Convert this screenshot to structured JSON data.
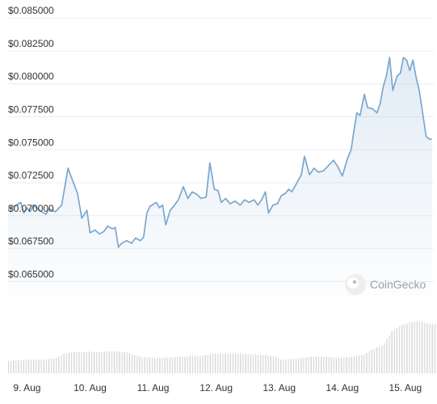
{
  "chart_data": {
    "type": "line",
    "currency": "USD",
    "y_ticks": [
      "$0.085000",
      "$0.082500",
      "$0.080000",
      "$0.077500",
      "$0.075000",
      "$0.072500",
      "$0.070000",
      "$0.067500",
      "$0.065000"
    ],
    "y_tick_values": [
      0.085,
      0.0825,
      0.08,
      0.0775,
      0.075,
      0.0725,
      0.07,
      0.0675,
      0.065
    ],
    "x_ticks": [
      "9. Aug",
      "10. Aug",
      "11. Aug",
      "12. Aug",
      "13. Aug",
      "14. Aug",
      "15. Aug"
    ],
    "x_tick_values": [
      9,
      10,
      11,
      12,
      13,
      14,
      15
    ],
    "ylim": [
      0.0638,
      0.0855
    ],
    "xlim": [
      8.7,
      15.45
    ],
    "grid": true,
    "watermark": "CoinGecko",
    "series": [
      {
        "values": [
          [
            8.7,
            0.0705
          ],
          [
            8.8,
            0.0707
          ],
          [
            8.9,
            0.071
          ],
          [
            8.95,
            0.0702
          ],
          [
            9.0,
            0.0706
          ],
          [
            9.05,
            0.0703
          ],
          [
            9.1,
            0.0708
          ],
          [
            9.2,
            0.0704
          ],
          [
            9.3,
            0.0701
          ],
          [
            9.35,
            0.0705
          ],
          [
            9.45,
            0.0703
          ],
          [
            9.55,
            0.0708
          ],
          [
            9.65,
            0.0736
          ],
          [
            9.72,
            0.0727
          ],
          [
            9.8,
            0.0717
          ],
          [
            9.87,
            0.0698
          ],
          [
            9.95,
            0.0704
          ],
          [
            10.0,
            0.0687
          ],
          [
            10.08,
            0.0689
          ],
          [
            10.15,
            0.0686
          ],
          [
            10.22,
            0.0688
          ],
          [
            10.28,
            0.0692
          ],
          [
            10.35,
            0.069
          ],
          [
            10.4,
            0.0691
          ],
          [
            10.45,
            0.0676
          ],
          [
            10.5,
            0.0679
          ],
          [
            10.58,
            0.0681
          ],
          [
            10.66,
            0.0679
          ],
          [
            10.72,
            0.0683
          ],
          [
            10.8,
            0.0681
          ],
          [
            10.85,
            0.0684
          ],
          [
            10.9,
            0.0702
          ],
          [
            10.95,
            0.0707
          ],
          [
            11.05,
            0.071
          ],
          [
            11.1,
            0.0706
          ],
          [
            11.15,
            0.0708
          ],
          [
            11.2,
            0.0693
          ],
          [
            11.27,
            0.0704
          ],
          [
            11.34,
            0.0708
          ],
          [
            11.4,
            0.0712
          ],
          [
            11.48,
            0.0722
          ],
          [
            11.55,
            0.0713
          ],
          [
            11.62,
            0.0718
          ],
          [
            11.7,
            0.0716
          ],
          [
            11.76,
            0.0713
          ],
          [
            11.84,
            0.0714
          ],
          [
            11.9,
            0.074
          ],
          [
            11.97,
            0.072
          ],
          [
            12.03,
            0.0719
          ],
          [
            12.08,
            0.071
          ],
          [
            12.15,
            0.0713
          ],
          [
            12.22,
            0.0709
          ],
          [
            12.3,
            0.0711
          ],
          [
            12.38,
            0.0708
          ],
          [
            12.45,
            0.0712
          ],
          [
            12.52,
            0.071
          ],
          [
            12.6,
            0.0712
          ],
          [
            12.66,
            0.0708
          ],
          [
            12.72,
            0.0712
          ],
          [
            12.78,
            0.0718
          ],
          [
            12.83,
            0.0702
          ],
          [
            12.9,
            0.0708
          ],
          [
            12.97,
            0.0709
          ],
          [
            13.03,
            0.0715
          ],
          [
            13.1,
            0.0717
          ],
          [
            13.15,
            0.072
          ],
          [
            13.2,
            0.0718
          ],
          [
            13.28,
            0.0725
          ],
          [
            13.35,
            0.0731
          ],
          [
            13.4,
            0.0745
          ],
          [
            13.48,
            0.0731
          ],
          [
            13.55,
            0.0736
          ],
          [
            13.62,
            0.0733
          ],
          [
            13.7,
            0.0734
          ],
          [
            13.78,
            0.0738
          ],
          [
            13.86,
            0.0742
          ],
          [
            13.93,
            0.0737
          ],
          [
            14.0,
            0.073
          ],
          [
            14.08,
            0.0743
          ],
          [
            14.14,
            0.075
          ],
          [
            14.18,
            0.0763
          ],
          [
            14.23,
            0.0778
          ],
          [
            14.28,
            0.0776
          ],
          [
            14.35,
            0.0792
          ],
          [
            14.4,
            0.0782
          ],
          [
            14.48,
            0.0781
          ],
          [
            14.55,
            0.0778
          ],
          [
            14.6,
            0.0785
          ],
          [
            14.65,
            0.0798
          ],
          [
            14.7,
            0.0806
          ],
          [
            14.75,
            0.082
          ],
          [
            14.8,
            0.0795
          ],
          [
            14.87,
            0.0806
          ],
          [
            14.92,
            0.0808
          ],
          [
            14.97,
            0.082
          ],
          [
            15.02,
            0.0818
          ],
          [
            15.07,
            0.081
          ],
          [
            15.12,
            0.0818
          ],
          [
            15.17,
            0.0805
          ],
          [
            15.22,
            0.0795
          ],
          [
            15.28,
            0.0776
          ],
          [
            15.33,
            0.076
          ],
          [
            15.38,
            0.0758
          ],
          [
            15.42,
            0.0758
          ]
        ]
      }
    ],
    "volume": {
      "x": [
        8.7,
        8.78,
        8.86,
        8.94,
        9.02,
        9.1,
        9.18,
        9.26,
        9.34,
        9.42,
        9.5,
        9.58,
        9.66,
        9.74,
        9.82,
        9.9,
        9.98,
        10.06,
        10.14,
        10.22,
        10.3,
        10.38,
        10.46,
        10.54,
        10.62,
        10.7,
        10.78,
        10.86,
        10.94,
        11.02,
        11.1,
        11.18,
        11.26,
        11.34,
        11.42,
        11.5,
        11.58,
        11.66,
        11.74,
        11.82,
        11.9,
        11.98,
        12.06,
        12.14,
        12.22,
        12.3,
        12.38,
        12.46,
        12.54,
        12.62,
        12.7,
        12.78,
        12.86,
        12.94,
        13.02,
        13.1,
        13.18,
        13.26,
        13.34,
        13.42,
        13.5,
        13.58,
        13.66,
        13.74,
        13.82,
        13.9,
        13.98,
        14.06,
        14.14,
        14.22,
        14.3,
        14.38,
        14.46,
        14.54,
        14.62,
        14.7,
        14.78,
        14.86,
        14.94,
        15.02,
        15.1,
        15.18,
        15.26,
        15.34,
        15.42
      ],
      "values": [
        16,
        17,
        17,
        18,
        18,
        18,
        18,
        18,
        19,
        20,
        22,
        26,
        27,
        28,
        28,
        28,
        29,
        28,
        28,
        29,
        29,
        29,
        29,
        28,
        27,
        24,
        22,
        21,
        21,
        20,
        20,
        21,
        21,
        21,
        22,
        22,
        23,
        23,
        23,
        24,
        25,
        26,
        26,
        26,
        26,
        26,
        26,
        26,
        25,
        25,
        24,
        24,
        23,
        22,
        18,
        18,
        19,
        19,
        20,
        21,
        22,
        22,
        22,
        22,
        21,
        20,
        21,
        21,
        22,
        23,
        24,
        27,
        31,
        34,
        36,
        45,
        56,
        60,
        64,
        66,
        68,
        69,
        68,
        66,
        65
      ],
      "max": 75
    }
  }
}
